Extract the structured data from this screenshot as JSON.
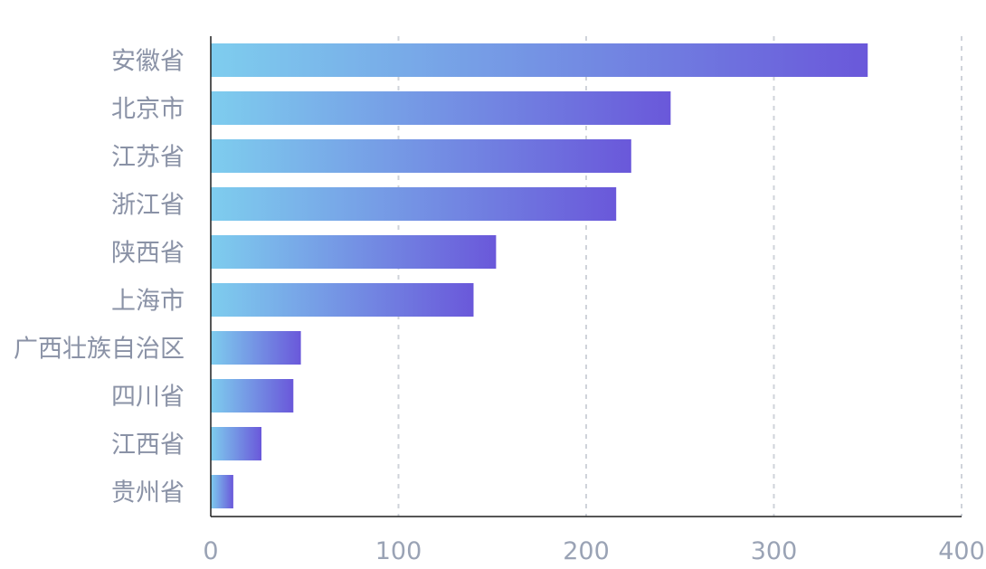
{
  "chart_data": {
    "type": "bar",
    "orientation": "horizontal",
    "categories": [
      "安徽省",
      "北京市",
      "江苏省",
      "浙江省",
      "陕西省",
      "上海市",
      "广西壮族自治区",
      "四川省",
      "江西省",
      "贵州省"
    ],
    "values": [
      350,
      245,
      224,
      216,
      152,
      140,
      48,
      44,
      27,
      12
    ],
    "xticks": [
      "0",
      "100",
      "200",
      "300",
      "400"
    ],
    "xlim": [
      0,
      400
    ],
    "grid": "vertical dashed",
    "legend": "none"
  },
  "colors": {
    "bar_gradient_start": "#7ecdee",
    "bar_gradient_end": "#6a58da",
    "label_text": "#8a92a6",
    "tick_text": "#9aa3b5",
    "grid": "#cfd3da",
    "axis": "#1f1f1f"
  }
}
